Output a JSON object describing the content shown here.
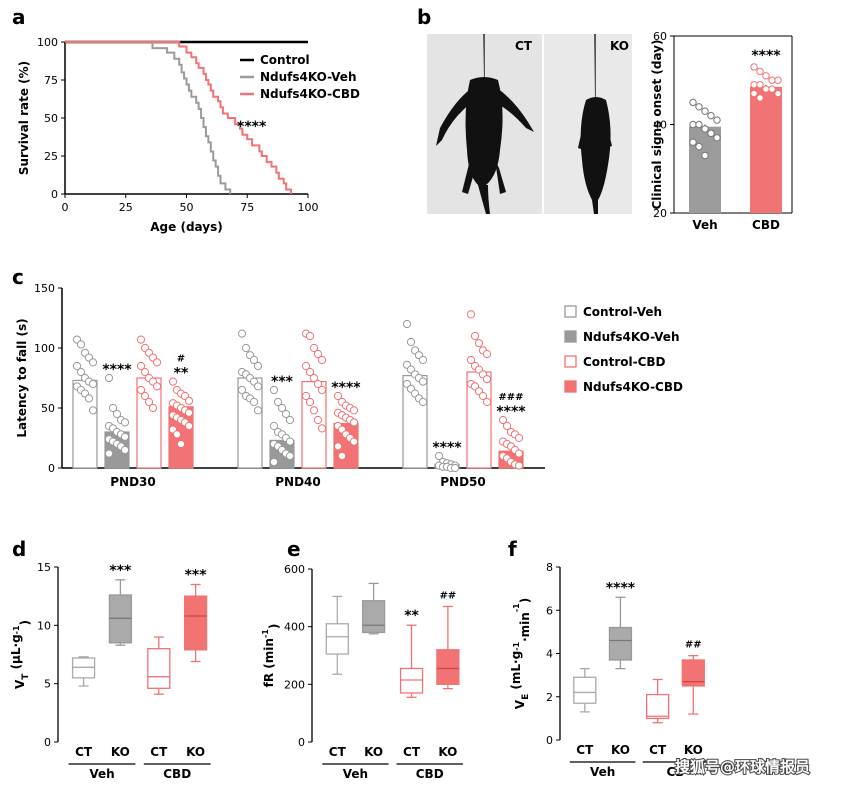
{
  "watermark": "搜狐号@环球情报员",
  "colors": {
    "control": "#000000",
    "veh": "#9b9b9b",
    "cbd": "#f27373",
    "cbd_light": "#f4a3a3",
    "grey_light": "#b3b3b3"
  },
  "panels": {
    "a": "a",
    "b": "b",
    "c": "c",
    "d": "d",
    "e": "e",
    "f": "f"
  },
  "chart_data": [
    {
      "id": "a",
      "type": "line",
      "xlabel": "Age (days)",
      "ylabel": "Survival rate (%)",
      "xlim": [
        0,
        100
      ],
      "ylim": [
        0,
        100
      ],
      "xticks": [
        "0",
        "25",
        "50",
        "75",
        "100"
      ],
      "yticks": [
        "0",
        "25",
        "50",
        "75",
        "100"
      ],
      "annotation": "****",
      "series": [
        {
          "name": "Control",
          "points": [
            [
              0,
              100
            ],
            [
              100,
              100
            ]
          ]
        },
        {
          "name": "Ndufs4KO-Veh",
          "points": [
            [
              0,
              100
            ],
            [
              36,
              100
            ],
            [
              36,
              96
            ],
            [
              42,
              96
            ],
            [
              42,
              93
            ],
            [
              45,
              93
            ],
            [
              45,
              89
            ],
            [
              47,
              89
            ],
            [
              47,
              85
            ],
            [
              48,
              85
            ],
            [
              48,
              80
            ],
            [
              49,
              80
            ],
            [
              49,
              76
            ],
            [
              50,
              76
            ],
            [
              50,
              72
            ],
            [
              51,
              72
            ],
            [
              51,
              68
            ],
            [
              52,
              68
            ],
            [
              52,
              64
            ],
            [
              54,
              64
            ],
            [
              54,
              60
            ],
            [
              55,
              60
            ],
            [
              55,
              56
            ],
            [
              56,
              56
            ],
            [
              56,
              50
            ],
            [
              57,
              50
            ],
            [
              57,
              44
            ],
            [
              58,
              44
            ],
            [
              58,
              38
            ],
            [
              59,
              38
            ],
            [
              59,
              34
            ],
            [
              60,
              34
            ],
            [
              60,
              28
            ],
            [
              61,
              28
            ],
            [
              61,
              22
            ],
            [
              62,
              22
            ],
            [
              62,
              18
            ],
            [
              63,
              18
            ],
            [
              63,
              12
            ],
            [
              64,
              12
            ],
            [
              64,
              7
            ],
            [
              66,
              7
            ],
            [
              66,
              3
            ],
            [
              68,
              3
            ],
            [
              68,
              0
            ]
          ]
        },
        {
          "name": "Ndufs4KO-CBD",
          "points": [
            [
              0,
              100
            ],
            [
              47,
              100
            ],
            [
              47,
              97
            ],
            [
              50,
              97
            ],
            [
              50,
              93
            ],
            [
              52,
              93
            ],
            [
              52,
              90
            ],
            [
              54,
              90
            ],
            [
              54,
              86
            ],
            [
              55,
              86
            ],
            [
              55,
              83
            ],
            [
              57,
              83
            ],
            [
              57,
              79
            ],
            [
              58,
              79
            ],
            [
              58,
              75
            ],
            [
              59,
              75
            ],
            [
              59,
              72
            ],
            [
              60,
              72
            ],
            [
              60,
              68
            ],
            [
              61,
              68
            ],
            [
              61,
              64
            ],
            [
              63,
              64
            ],
            [
              63,
              61
            ],
            [
              64,
              61
            ],
            [
              64,
              57
            ],
            [
              65,
              57
            ],
            [
              65,
              53
            ],
            [
              67,
              53
            ],
            [
              67,
              50
            ],
            [
              70,
              50
            ],
            [
              70,
              46
            ],
            [
              72,
              46
            ],
            [
              72,
              43
            ],
            [
              73,
              43
            ],
            [
              73,
              39
            ],
            [
              75,
              39
            ],
            [
              75,
              36
            ],
            [
              77,
              36
            ],
            [
              77,
              32
            ],
            [
              80,
              32
            ],
            [
              80,
              28
            ],
            [
              81,
              28
            ],
            [
              81,
              25
            ],
            [
              83,
              25
            ],
            [
              83,
              21
            ],
            [
              85,
              21
            ],
            [
              85,
              18
            ],
            [
              87,
              18
            ],
            [
              87,
              14
            ],
            [
              88,
              14
            ],
            [
              88,
              10
            ],
            [
              90,
              10
            ],
            [
              90,
              7
            ],
            [
              91,
              7
            ],
            [
              91,
              3
            ],
            [
              93,
              3
            ],
            [
              93,
              0
            ]
          ]
        }
      ]
    },
    {
      "id": "b",
      "type": "bar",
      "ylabel": "Clinical signs onset (day)",
      "ylim": [
        20,
        60
      ],
      "yticks": [
        "20",
        "40",
        "60"
      ],
      "categories": [
        "Veh",
        "CBD"
      ],
      "values": [
        39.5,
        48.5
      ],
      "points": [
        [
          45,
          44,
          43,
          42,
          41,
          40,
          40,
          39,
          38,
          37,
          36,
          35,
          33
        ],
        [
          53,
          52,
          51,
          50,
          50,
          49,
          49,
          48,
          48,
          47,
          47,
          46
        ]
      ],
      "annotation": "****",
      "photo_labels": [
        "CT",
        "KO"
      ]
    },
    {
      "id": "c",
      "type": "bar",
      "ylabel": "Latency to fall (s)",
      "ylim": [
        0,
        150
      ],
      "yticks": [
        "0",
        "50",
        "100",
        "150"
      ],
      "categories": [
        "PND30",
        "PND40",
        "PND50"
      ],
      "series": [
        {
          "name": "Control-Veh",
          "values": [
            73,
            75,
            77
          ],
          "points": [
            [
              107,
              103,
              96,
              92,
              88,
              85,
              80,
              75,
              72,
              70,
              68,
              65,
              62,
              58,
              48
            ],
            [
              112,
              100,
              94,
              90,
              85,
              80,
              78,
              75,
              72,
              68,
              65,
              60,
              58,
              55,
              48
            ],
            [
              120,
              105,
              98,
              94,
              90,
              86,
              82,
              78,
              75,
              72,
              70,
              66,
              62,
              58,
              55
            ]
          ]
        },
        {
          "name": "Ndufs4KO-Veh",
          "values": [
            30,
            23,
            3
          ],
          "points": [
            [
              75,
              50,
              45,
              40,
              38,
              35,
              33,
              30,
              28,
              26,
              24,
              22,
              20,
              18,
              15,
              12
            ],
            [
              65,
              55,
              50,
              45,
              40,
              35,
              30,
              28,
              25,
              22,
              20,
              18,
              15,
              12,
              10,
              5
            ],
            [
              10,
              5,
              4,
              3,
              2,
              2,
              1,
              1,
              0,
              0
            ]
          ]
        },
        {
          "name": "Control-CBD",
          "values": [
            75,
            72,
            80
          ],
          "points": [
            [
              107,
              100,
              96,
              92,
              88,
              85,
              80,
              75,
              72,
              68,
              65,
              60,
              55,
              50
            ],
            [
              112,
              110,
              100,
              95,
              90,
              85,
              80,
              75,
              70,
              65,
              60,
              55,
              48,
              40,
              33
            ],
            [
              128,
              110,
              104,
              98,
              95,
              90,
              85,
              82,
              78,
              74,
              70,
              68,
              64,
              60,
              55
            ]
          ]
        },
        {
          "name": "Ndufs4KO-CBD",
          "values": [
            51,
            37,
            14
          ],
          "points": [
            [
              72,
              65,
              62,
              60,
              56,
              54,
              52,
              50,
              48,
              46,
              44,
              42,
              40,
              38,
              35,
              32,
              28,
              20
            ],
            [
              60,
              55,
              52,
              50,
              48,
              46,
              44,
              42,
              40,
              38,
              35,
              32,
              28,
              25,
              22,
              18,
              10
            ],
            [
              40,
              35,
              30,
              28,
              25,
              22,
              20,
              18,
              15,
              12,
              10,
              8,
              5,
              3,
              2
            ]
          ]
        }
      ],
      "annotations": {
        "PND30": {
          "ko_veh": "****",
          "ko_cbd": "**",
          "ko_cbd_hash": "#"
        },
        "PND40": {
          "ko_veh": "***",
          "ko_cbd": "****"
        },
        "PND50": {
          "ko_veh": "****",
          "ko_cbd": "****",
          "ko_cbd_hash": "###"
        }
      },
      "legend": [
        "Control-Veh",
        "Ndufs4KO-Veh",
        "Control-CBD",
        "Ndufs4KO-CBD"
      ]
    },
    {
      "id": "d",
      "type": "box",
      "ylabel_main": "V",
      "ylabel_sub": "T",
      "ylabel_unit": " (µL·g",
      "ylabel_sup": "-1",
      "ylabel_end": ")",
      "ylim": [
        0,
        15
      ],
      "yticks": [
        "0",
        "5",
        "10",
        "15"
      ],
      "boxes": [
        {
          "group": "Veh",
          "label": "CT",
          "min": 4.8,
          "q1": 5.5,
          "median": 6.4,
          "q3": 7.2,
          "max": 7.3
        },
        {
          "group": "Veh",
          "label": "KO",
          "min": 8.3,
          "q1": 8.5,
          "median": 10.6,
          "q3": 12.6,
          "max": 13.9
        },
        {
          "group": "CBD",
          "label": "CT",
          "min": 4.1,
          "q1": 4.6,
          "median": 5.6,
          "q3": 8.0,
          "max": 9.0
        },
        {
          "group": "CBD",
          "label": "KO",
          "min": 6.9,
          "q1": 7.9,
          "median": 10.8,
          "q3": 12.5,
          "max": 13.5
        }
      ],
      "annotations": [
        "",
        "***",
        "",
        "***"
      ],
      "groups": [
        "Veh",
        "CBD"
      ]
    },
    {
      "id": "e",
      "type": "box",
      "ylabel_main": "fR (min",
      "ylabel_sup": "-1",
      "ylabel_end": ")",
      "ylim": [
        0,
        600
      ],
      "yticks": [
        "0",
        "200",
        "400",
        "600"
      ],
      "boxes": [
        {
          "group": "Veh",
          "label": "CT",
          "min": 235,
          "q1": 305,
          "median": 365,
          "q3": 410,
          "max": 505
        },
        {
          "group": "Veh",
          "label": "KO",
          "min": 375,
          "q1": 380,
          "median": 405,
          "q3": 490,
          "max": 550
        },
        {
          "group": "CBD",
          "label": "CT",
          "min": 155,
          "q1": 170,
          "median": 215,
          "q3": 255,
          "max": 405
        },
        {
          "group": "CBD",
          "label": "KO",
          "min": 185,
          "q1": 200,
          "median": 255,
          "q3": 320,
          "max": 470
        }
      ],
      "annotations": [
        "",
        "",
        "**",
        "##"
      ],
      "groups": [
        "Veh",
        "CBD"
      ]
    },
    {
      "id": "f",
      "type": "box",
      "ylabel_main": "V",
      "ylabel_sub": "E",
      "ylabel_unit": " (mL·g",
      "ylabel_sup": "-1",
      "ylabel_mid": "·min",
      "ylabel_sup2": "-1",
      "ylabel_end": ")",
      "ylim": [
        0,
        8
      ],
      "yticks": [
        "0",
        "2",
        "4",
        "6",
        "8"
      ],
      "boxes": [
        {
          "group": "Veh",
          "label": "CT",
          "min": 1.3,
          "q1": 1.7,
          "median": 2.2,
          "q3": 2.9,
          "max": 3.3
        },
        {
          "group": "Veh",
          "label": "KO",
          "min": 3.3,
          "q1": 3.7,
          "median": 4.6,
          "q3": 5.2,
          "max": 6.6
        },
        {
          "group": "CBD",
          "label": "CT",
          "min": 0.8,
          "q1": 1.0,
          "median": 1.1,
          "q3": 2.1,
          "max": 2.8
        },
        {
          "group": "CBD",
          "label": "KO",
          "min": 1.2,
          "q1": 2.5,
          "median": 2.7,
          "q3": 3.7,
          "max": 3.9
        }
      ],
      "annotations": [
        "",
        "****",
        "",
        "##"
      ],
      "groups": [
        "Veh",
        "CB"
      ]
    }
  ]
}
